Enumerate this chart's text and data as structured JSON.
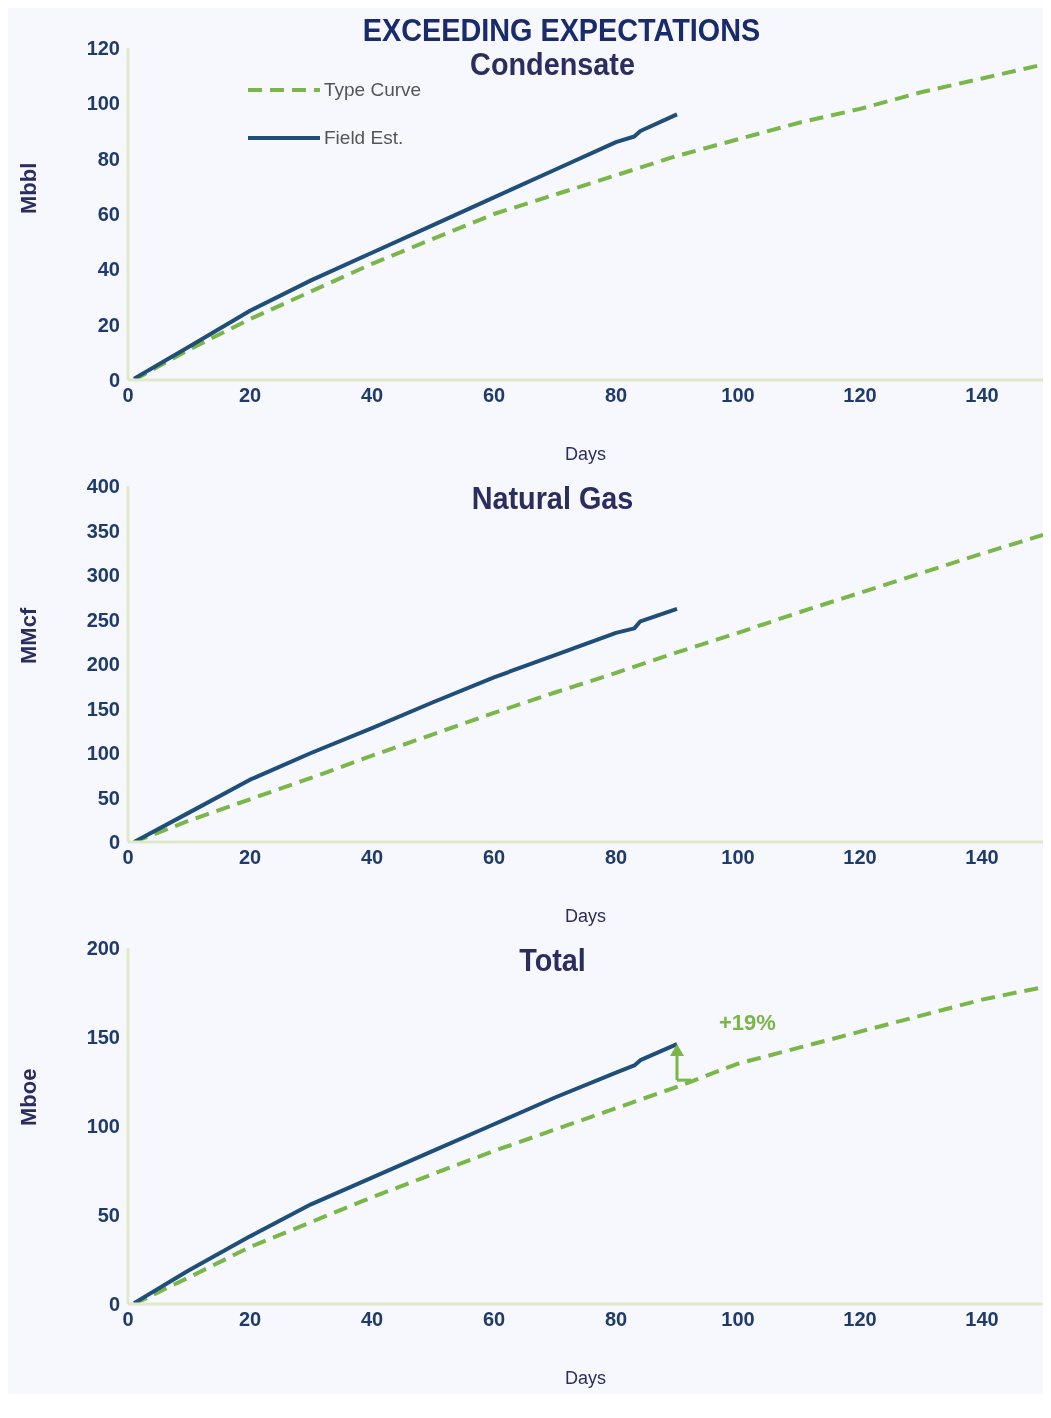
{
  "chart_data": [
    {
      "type": "other",
      "title": "EXCEEDING EXPECTATIONS"
    },
    {
      "type": "line",
      "title": "Condensate",
      "xlabel": "Days",
      "ylabel": "Mbbl",
      "xlim": [
        0,
        150
      ],
      "xticks": [
        0,
        20,
        40,
        60,
        80,
        100,
        120,
        140
      ],
      "ylim": [
        0,
        120
      ],
      "yticks": [
        0,
        20,
        40,
        60,
        80,
        100,
        120
      ],
      "grid": false,
      "legend": "top left",
      "marker": "none",
      "series": [
        {
          "name": "Type Curve",
          "color": "#7ab648",
          "line_style": "dashed",
          "x": [
            1,
            10,
            20,
            30,
            40,
            50,
            60,
            70,
            80,
            90,
            100,
            110,
            120,
            130,
            140,
            150
          ],
          "values": [
            0,
            11,
            22,
            32,
            42,
            51,
            60,
            67,
            74,
            81,
            87,
            93,
            98,
            104,
            109,
            114
          ]
        },
        {
          "name": "Field Est.",
          "color": "#1f4e79",
          "line_style": "solid",
          "x": [
            1,
            10,
            20,
            30,
            40,
            50,
            60,
            70,
            80,
            83,
            84,
            90
          ],
          "values": [
            0.5,
            12,
            25,
            36,
            46,
            56,
            66,
            76,
            86,
            88,
            90,
            96
          ]
        }
      ]
    },
    {
      "type": "line",
      "title": "Natural Gas",
      "xlabel": "Days",
      "ylabel": "MMcf",
      "xlim": [
        0,
        150
      ],
      "xticks": [
        0,
        20,
        40,
        60,
        80,
        100,
        120,
        140
      ],
      "ylim": [
        0,
        400
      ],
      "yticks": [
        0,
        50,
        100,
        150,
        200,
        250,
        300,
        350,
        400
      ],
      "grid": false,
      "legend": false,
      "marker": "none",
      "series": [
        {
          "color": "#7ab648",
          "line_style": "dashed",
          "x": [
            1,
            10,
            20,
            30,
            40,
            50,
            60,
            70,
            80,
            90,
            100,
            110,
            120,
            130,
            140,
            150
          ],
          "values": [
            0,
            24,
            48,
            72,
            97,
            121,
            145,
            168,
            190,
            213,
            235,
            258,
            280,
            302,
            324,
            345
          ]
        },
        {
          "color": "#1f4e79",
          "line_style": "solid",
          "x": [
            1,
            10,
            20,
            30,
            40,
            50,
            60,
            70,
            80,
            83,
            84,
            90
          ],
          "values": [
            0,
            33,
            70,
            100,
            128,
            157,
            185,
            210,
            235,
            240,
            248,
            262
          ]
        }
      ]
    },
    {
      "type": "line",
      "title": "Total",
      "xlabel": "Days",
      "ylabel": "Mboe",
      "xlim": [
        0,
        150
      ],
      "xticks": [
        0,
        20,
        40,
        60,
        80,
        100,
        120,
        140
      ],
      "ylim": [
        0,
        200
      ],
      "yticks": [
        0,
        50,
        100,
        150,
        200
      ],
      "grid": false,
      "legend": false,
      "marker": "none",
      "annotations": [
        {
          "text": "+19%",
          "x": 90,
          "y": 146
        }
      ],
      "series": [
        {
          "color": "#7ab648",
          "line_style": "dashed",
          "x": [
            1,
            10,
            20,
            30,
            40,
            50,
            60,
            70,
            80,
            90,
            100,
            110,
            120,
            130,
            140,
            150
          ],
          "values": [
            0,
            15,
            32,
            46,
            60,
            73,
            86,
            98,
            110,
            122,
            135,
            144,
            153,
            162,
            171,
            178
          ]
        },
        {
          "color": "#1f4e79",
          "line_style": "solid",
          "x": [
            1,
            10,
            20,
            30,
            40,
            50,
            60,
            70,
            80,
            83,
            84,
            90
          ],
          "values": [
            0.5,
            19,
            38,
            56,
            71,
            86,
            101,
            116,
            130,
            134,
            137,
            146
          ]
        }
      ]
    }
  ]
}
